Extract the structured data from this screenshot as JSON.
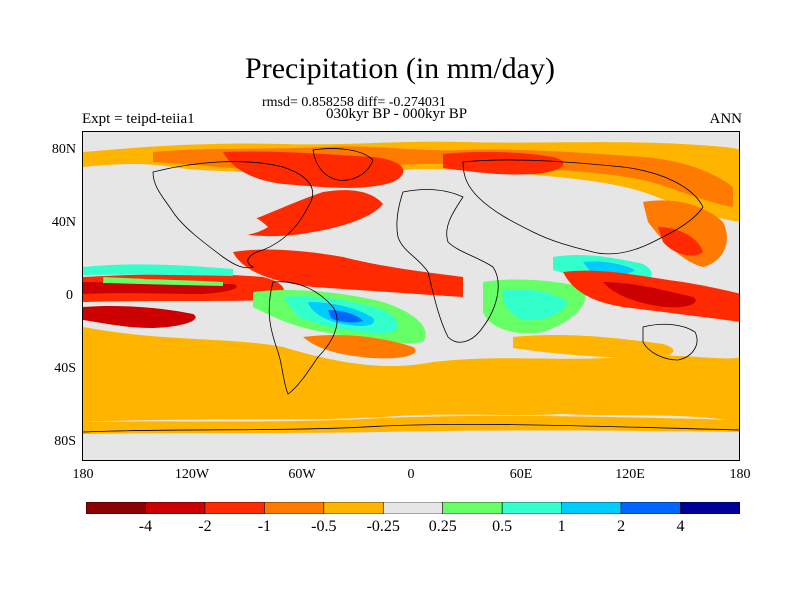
{
  "title": "Precipitation (in mm/day)",
  "stats": "rmsd= 0.858258 diff= -0.274031",
  "period": "030kyr BP - 000kyr BP",
  "experiment": "Expt = teipd-teiia1",
  "season": "ANN",
  "y_axis": {
    "ticks": [
      "80N",
      "40N",
      "0",
      "40S",
      "80S"
    ]
  },
  "x_axis": {
    "ticks": [
      "180",
      "120W",
      "60W",
      "0",
      "60E",
      "120E",
      "180"
    ]
  },
  "colorbar": {
    "colors": [
      "#8b0000",
      "#cc0000",
      "#ff2a00",
      "#ff7a00",
      "#ffb400",
      "#e6e6e6",
      "#66ff66",
      "#33ffcc",
      "#00ccff",
      "#0066ff",
      "#000099"
    ],
    "labels": [
      "-4",
      "-2",
      "-1",
      "-0.5",
      "-0.25",
      "0.25",
      "0.5",
      "1",
      "2",
      "4"
    ]
  },
  "palette": {
    "ocean_neutral": "#e6e6e6",
    "dry_light": "#ffb400",
    "dry_med": "#ff7a00",
    "dry_strong": "#ff2a00",
    "dry_extreme": "#cc0000",
    "wet_light": "#66ff66",
    "wet_med": "#33ffcc",
    "wet_strong": "#00ccff",
    "wet_extreme": "#0066ff",
    "coastline": "#000000"
  }
}
